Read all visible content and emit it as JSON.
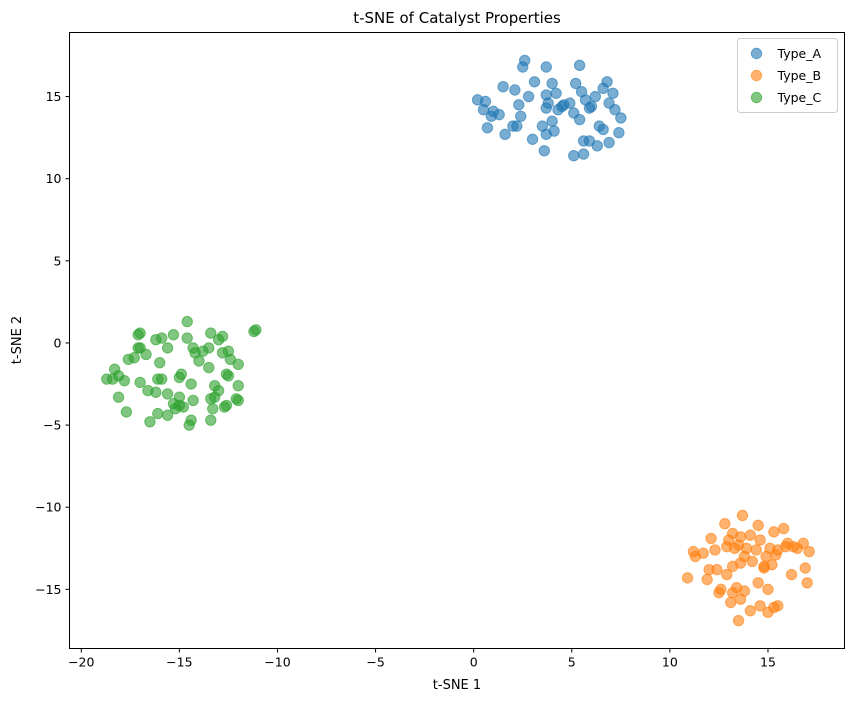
{
  "chart_data": {
    "type": "scatter",
    "title": "t-SNE of Catalyst Properties",
    "xlabel": "t-SNE 1",
    "ylabel": "t-SNE 2",
    "xlim": [
      -20.6,
      18.9
    ],
    "ylim": [
      -18.6,
      18.9
    ],
    "xticks": [
      -20,
      -15,
      -10,
      -5,
      0,
      5,
      10,
      15
    ],
    "yticks": [
      -15,
      -10,
      -5,
      0,
      5,
      10,
      15
    ],
    "grid": false,
    "legend_position": "top-right",
    "series": [
      {
        "name": "Type_A",
        "color": "#1f77b4",
        "points": [
          [
            2.6,
            17.2
          ],
          [
            2.5,
            16.8
          ],
          [
            3.7,
            16.8
          ],
          [
            5.4,
            16.9
          ],
          [
            3.1,
            15.9
          ],
          [
            5.2,
            15.8
          ],
          [
            6.8,
            15.9
          ],
          [
            1.5,
            15.6
          ],
          [
            2.1,
            15.4
          ],
          [
            4.2,
            15.2
          ],
          [
            3.7,
            15.1
          ],
          [
            5.5,
            15.3
          ],
          [
            6.6,
            15.5
          ],
          [
            7.1,
            15.2
          ],
          [
            0.2,
            14.8
          ],
          [
            0.6,
            14.7
          ],
          [
            2.8,
            15.0
          ],
          [
            4.0,
            15.8
          ],
          [
            5.7,
            14.8
          ],
          [
            6.2,
            15.0
          ],
          [
            2.3,
            14.5
          ],
          [
            3.8,
            14.6
          ],
          [
            4.6,
            14.5
          ],
          [
            4.9,
            14.6
          ],
          [
            6.0,
            14.4
          ],
          [
            6.9,
            14.6
          ],
          [
            0.5,
            14.2
          ],
          [
            1.0,
            14.1
          ],
          [
            3.7,
            14.3
          ],
          [
            4.3,
            14.2
          ],
          [
            5.1,
            14.0
          ],
          [
            5.9,
            14.3
          ],
          [
            7.2,
            14.2
          ],
          [
            0.9,
            13.8
          ],
          [
            1.3,
            13.9
          ],
          [
            2.4,
            13.8
          ],
          [
            4.0,
            13.5
          ],
          [
            5.4,
            13.6
          ],
          [
            7.5,
            13.7
          ],
          [
            0.7,
            13.1
          ],
          [
            2.0,
            13.2
          ],
          [
            3.5,
            13.2
          ],
          [
            4.1,
            12.9
          ],
          [
            6.4,
            13.2
          ],
          [
            6.6,
            13.0
          ],
          [
            1.6,
            12.7
          ],
          [
            3.0,
            12.4
          ],
          [
            3.7,
            12.7
          ],
          [
            5.6,
            12.3
          ],
          [
            5.9,
            12.3
          ],
          [
            6.3,
            12.0
          ],
          [
            6.9,
            12.2
          ],
          [
            7.4,
            12.8
          ],
          [
            3.6,
            11.7
          ],
          [
            5.1,
            11.4
          ],
          [
            5.6,
            11.5
          ],
          [
            2.2,
            13.2
          ],
          [
            4.5,
            14.4
          ]
        ]
      },
      {
        "name": "Type_B",
        "color": "#ff7f0e",
        "points": [
          [
            13.7,
            -10.5
          ],
          [
            12.8,
            -11.0
          ],
          [
            14.5,
            -11.1
          ],
          [
            15.8,
            -11.3
          ],
          [
            13.2,
            -11.6
          ],
          [
            13.6,
            -11.8
          ],
          [
            14.1,
            -11.7
          ],
          [
            14.6,
            -12.0
          ],
          [
            15.3,
            -11.5
          ],
          [
            16.0,
            -12.2
          ],
          [
            12.1,
            -11.9
          ],
          [
            13.0,
            -12.0
          ],
          [
            13.5,
            -12.3
          ],
          [
            13.9,
            -12.5
          ],
          [
            14.4,
            -12.6
          ],
          [
            15.1,
            -12.5
          ],
          [
            15.5,
            -12.6
          ],
          [
            16.3,
            -12.4
          ],
          [
            16.8,
            -12.2
          ],
          [
            17.1,
            -12.7
          ],
          [
            11.2,
            -12.7
          ],
          [
            11.7,
            -12.8
          ],
          [
            12.3,
            -12.6
          ],
          [
            12.9,
            -12.4
          ],
          [
            13.3,
            -12.5
          ],
          [
            13.8,
            -13.0
          ],
          [
            14.9,
            -13.0
          ],
          [
            15.4,
            -12.9
          ],
          [
            15.9,
            -12.4
          ],
          [
            16.5,
            -12.5
          ],
          [
            11.3,
            -13.0
          ],
          [
            12.0,
            -13.8
          ],
          [
            12.4,
            -13.8
          ],
          [
            13.2,
            -13.6
          ],
          [
            13.6,
            -13.4
          ],
          [
            14.2,
            -13.3
          ],
          [
            14.8,
            -13.7
          ],
          [
            15.2,
            -13.5
          ],
          [
            16.2,
            -14.1
          ],
          [
            16.9,
            -13.7
          ],
          [
            10.9,
            -14.3
          ],
          [
            11.9,
            -14.4
          ],
          [
            12.6,
            -15.0
          ],
          [
            12.5,
            -15.2
          ],
          [
            13.2,
            -15.2
          ],
          [
            13.4,
            -14.9
          ],
          [
            13.8,
            -15.1
          ],
          [
            14.5,
            -14.6
          ],
          [
            15.0,
            -15.0
          ],
          [
            17.0,
            -14.6
          ],
          [
            13.1,
            -15.8
          ],
          [
            13.6,
            -15.6
          ],
          [
            14.1,
            -16.3
          ],
          [
            14.6,
            -16.0
          ],
          [
            15.0,
            -16.4
          ],
          [
            15.3,
            -16.1
          ],
          [
            15.5,
            -16.0
          ],
          [
            13.5,
            -16.9
          ],
          [
            14.8,
            -13.6
          ],
          [
            12.9,
            -14.1
          ]
        ]
      },
      {
        "name": "Type_C",
        "color": "#2ca02c",
        "points": [
          [
            -14.6,
            1.3
          ],
          [
            -17.0,
            0.6
          ],
          [
            -17.1,
            0.5
          ],
          [
            -15.3,
            0.5
          ],
          [
            -13.4,
            0.6
          ],
          [
            -12.8,
            0.4
          ],
          [
            -11.2,
            0.7
          ],
          [
            -11.1,
            0.8
          ],
          [
            -15.9,
            0.3
          ],
          [
            -16.2,
            0.2
          ],
          [
            -14.6,
            0.3
          ],
          [
            -13.0,
            0.2
          ],
          [
            -17.1,
            -0.3
          ],
          [
            -17.0,
            -0.3
          ],
          [
            -15.6,
            -0.3
          ],
          [
            -14.3,
            -0.3
          ],
          [
            -13.5,
            -0.3
          ],
          [
            -12.5,
            -0.5
          ],
          [
            -16.7,
            -0.7
          ],
          [
            -14.2,
            -0.6
          ],
          [
            -13.8,
            -0.5
          ],
          [
            -12.8,
            -0.6
          ],
          [
            -17.3,
            -0.9
          ],
          [
            -17.6,
            -1.0
          ],
          [
            -16.0,
            -1.2
          ],
          [
            -13.5,
            -1.5
          ],
          [
            -12.4,
            -1.0
          ],
          [
            -14.0,
            -1.1
          ],
          [
            -12.0,
            -1.3
          ],
          [
            -18.3,
            -1.6
          ],
          [
            -18.1,
            -2.0
          ],
          [
            -18.7,
            -2.2
          ],
          [
            -17.8,
            -2.3
          ],
          [
            -16.1,
            -2.2
          ],
          [
            -15.9,
            -2.2
          ],
          [
            -15.0,
            -2.1
          ],
          [
            -14.9,
            -1.9
          ],
          [
            -12.6,
            -1.9
          ],
          [
            -12.5,
            -2.0
          ],
          [
            -18.4,
            -2.2
          ],
          [
            -17.0,
            -2.4
          ],
          [
            -16.6,
            -2.9
          ],
          [
            -16.2,
            -3.0
          ],
          [
            -15.6,
            -3.1
          ],
          [
            -15.0,
            -3.3
          ],
          [
            -14.4,
            -2.5
          ],
          [
            -13.2,
            -2.6
          ],
          [
            -13.0,
            -2.9
          ],
          [
            -12.0,
            -2.6
          ],
          [
            -18.1,
            -3.3
          ],
          [
            -14.3,
            -3.5
          ],
          [
            -13.4,
            -3.4
          ],
          [
            -13.2,
            -3.3
          ],
          [
            -12.1,
            -3.4
          ],
          [
            -12.0,
            -3.5
          ],
          [
            -15.3,
            -3.7
          ],
          [
            -15.0,
            -3.8
          ],
          [
            -14.8,
            -3.9
          ],
          [
            -17.7,
            -4.2
          ],
          [
            -16.1,
            -4.3
          ],
          [
            -15.6,
            -4.4
          ],
          [
            -13.3,
            -4.0
          ],
          [
            -12.7,
            -3.9
          ],
          [
            -12.6,
            -3.8
          ],
          [
            -16.5,
            -4.8
          ],
          [
            -14.4,
            -4.7
          ],
          [
            -13.4,
            -4.7
          ],
          [
            -14.5,
            -5.0
          ],
          [
            -15.2,
            -4.0
          ]
        ]
      }
    ]
  }
}
